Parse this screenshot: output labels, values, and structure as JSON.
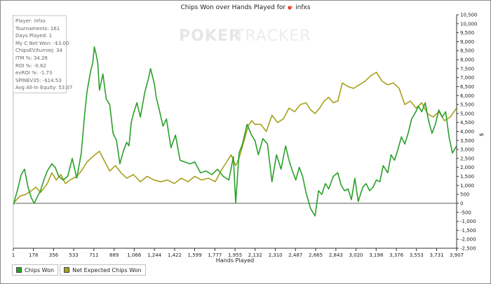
{
  "title": "Chips Won over Hands Played for",
  "player_name": "infxs",
  "watermark": {
    "left": "POKER",
    "right": "TRACKER"
  },
  "stats": [
    "Player: infxs",
    "Tournaments: 161",
    "Days Played: 1",
    "My C Net Won: -$3.00",
    "ChipsEV/turniej: 34",
    "ITM %: 34.28",
    "ROI %: -0.62",
    "evROI %: -1.73",
    "SPINEV35: -$14.53",
    "Avg All-In Equity: 53.07"
  ],
  "colors": {
    "chips_won": "#2aa02a",
    "net_expected": "#a7a01c",
    "axis": "#333333",
    "grid": "#e2e2e2"
  },
  "chart_data": {
    "type": "line",
    "title": "Chips Won over Hands Played for infxs",
    "xlabel": "Hands Played",
    "ylabel": "$",
    "xlim": [
      1,
      3907
    ],
    "ylim": [
      -2500,
      10500
    ],
    "x_ticks": [
      1,
      178,
      356,
      533,
      711,
      889,
      1066,
      1244,
      1422,
      1599,
      1777,
      1955,
      2132,
      2310,
      2487,
      2665,
      2843,
      3020,
      3198,
      3376,
      3553,
      3731,
      3907
    ],
    "x_tick_labels": [
      "1",
      "178",
      "356",
      "533",
      "711",
      "889",
      "1,066",
      "1,244",
      "1,422",
      "1,599",
      "1,777",
      "1,955",
      "2,132",
      "2,310",
      "2,487",
      "2,665",
      "2,843",
      "3,020",
      "3,198",
      "3,376",
      "3,553",
      "3,731",
      "3,907"
    ],
    "y_ticks": [
      -2500,
      -2000,
      -1500,
      -1000,
      -500,
      0,
      500,
      1000,
      1500,
      2000,
      2500,
      3000,
      3500,
      4000,
      4500,
      5000,
      5500,
      6000,
      6500,
      7000,
      7500,
      8000,
      8500,
      9000,
      9500,
      10000,
      10500
    ],
    "y_tick_labels": [
      "-2,500",
      "-2,000",
      "-1,500",
      "-1,000",
      "-500",
      "0",
      "500",
      "1,000",
      "1,500",
      "2,000",
      "2,500",
      "3,000",
      "3,500",
      "4,000",
      "4,500",
      "5,000",
      "5,500",
      "6,000",
      "6,500",
      "7,000",
      "7,500",
      "8,000",
      "8,500",
      "9,000",
      "9,500",
      "10,000",
      "10,500"
    ],
    "grid": false,
    "legend_position": "bottom-left",
    "series": [
      {
        "name": "Chips Won",
        "x": [
          1,
          40,
          70,
          100,
          130,
          160,
          185,
          200,
          240,
          270,
          300,
          340,
          370,
          400,
          440,
          480,
          520,
          560,
          600,
          630,
          650,
          680,
          700,
          715,
          730,
          745,
          760,
          790,
          820,
          850,
          880,
          910,
          940,
          970,
          1000,
          1020,
          1040,
          1060,
          1090,
          1120,
          1160,
          1190,
          1210,
          1230,
          1245,
          1260,
          1280,
          1320,
          1350,
          1390,
          1430,
          1470,
          1510,
          1560,
          1600,
          1650,
          1700,
          1750,
          1800,
          1850,
          1900,
          1940,
          1960,
          1990,
          2020,
          2060,
          2100,
          2130,
          2160,
          2200,
          2240,
          2280,
          2320,
          2360,
          2400,
          2430,
          2460,
          2490,
          2520,
          2550,
          2580,
          2620,
          2660,
          2690,
          2720,
          2750,
          2780,
          2820,
          2860,
          2890,
          2920,
          2950,
          2980,
          3010,
          3040,
          3080,
          3110,
          3140,
          3170,
          3200,
          3230,
          3260,
          3300,
          3330,
          3360,
          3390,
          3420,
          3450,
          3480,
          3510,
          3540,
          3570,
          3600,
          3630,
          3660,
          3690,
          3720,
          3750,
          3780,
          3810,
          3840,
          3870,
          3907
        ],
        "y": [
          -100,
          800,
          1600,
          1900,
          900,
          300,
          0,
          200,
          700,
          1300,
          1800,
          2200,
          2000,
          1500,
          1300,
          1500,
          2500,
          1400,
          2800,
          5000,
          6200,
          7300,
          7800,
          8700,
          8300,
          7800,
          6300,
          7200,
          5800,
          5500,
          3900,
          3500,
          2200,
          2900,
          3400,
          3200,
          4500,
          5000,
          5600,
          4800,
          6200,
          6900,
          7500,
          7000,
          6600,
          5900,
          5400,
          4300,
          4700,
          3100,
          3800,
          2400,
          2300,
          2200,
          2300,
          1700,
          1800,
          1600,
          1900,
          1500,
          1300,
          2600,
          0,
          2800,
          3300,
          4400,
          3800,
          3500,
          2700,
          3600,
          3300,
          1200,
          2700,
          1900,
          3200,
          2400,
          1800,
          1300,
          2000,
          1500,
          600,
          -300,
          -700,
          700,
          500,
          1100,
          800,
          1500,
          1700,
          1000,
          700,
          800,
          200,
          1400,
          100,
          900,
          1100,
          700,
          900,
          1300,
          1200,
          2100,
          1700,
          2700,
          2400,
          3000,
          3700,
          3300,
          3900,
          4700,
          5000,
          5400,
          5100,
          5600,
          4600,
          3900,
          4400,
          5200,
          4800,
          5100,
          3700,
          2800,
          3200
        ]
      },
      {
        "name": "Net Expected Chips Won",
        "x": [
          1,
          60,
          110,
          160,
          200,
          240,
          300,
          340,
          380,
          420,
          460,
          500,
          560,
          600,
          650,
          700,
          760,
          800,
          850,
          900,
          950,
          1000,
          1060,
          1120,
          1180,
          1240,
          1300,
          1360,
          1420,
          1480,
          1540,
          1600,
          1660,
          1720,
          1780,
          1830,
          1880,
          1920,
          1960,
          1990,
          2030,
          2070,
          2100,
          2130,
          2180,
          2230,
          2280,
          2330,
          2380,
          2430,
          2480,
          2530,
          2580,
          2620,
          2660,
          2700,
          2740,
          2780,
          2820,
          2860,
          2900,
          2950,
          3000,
          3050,
          3100,
          3150,
          3200,
          3250,
          3300,
          3350,
          3400,
          3450,
          3500,
          3550,
          3600,
          3650,
          3700,
          3750,
          3800,
          3850,
          3907
        ],
        "y": [
          0,
          400,
          500,
          700,
          900,
          600,
          1100,
          1700,
          1300,
          1600,
          1100,
          1300,
          1500,
          1800,
          2300,
          2600,
          2900,
          2400,
          1800,
          2100,
          1700,
          1400,
          1600,
          1200,
          1500,
          1300,
          1200,
          1300,
          1100,
          1400,
          1200,
          1500,
          1300,
          1400,
          1200,
          1800,
          2300,
          2700,
          2100,
          2500,
          3400,
          4300,
          4600,
          4400,
          4400,
          4000,
          4900,
          4500,
          4700,
          5300,
          5100,
          5500,
          5600,
          5200,
          5000,
          5300,
          5700,
          5900,
          5600,
          5700,
          6700,
          6500,
          6400,
          6600,
          6800,
          7100,
          7300,
          6800,
          6600,
          6700,
          6400,
          5500,
          5700,
          5300,
          5600,
          5000,
          4800,
          5100,
          4600,
          4800,
          5300
        ]
      }
    ]
  }
}
